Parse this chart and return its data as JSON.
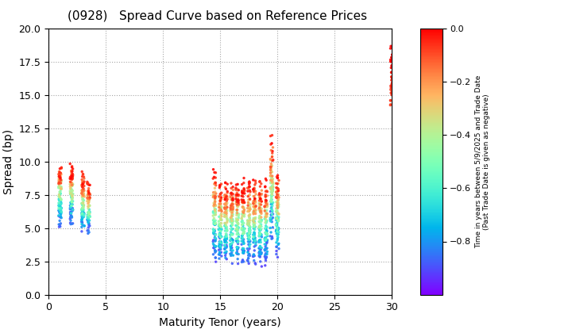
{
  "title": "(0928)   Spread Curve based on Reference Prices",
  "xlabel": "Maturity Tenor (years)",
  "ylabel": "Spread (bp)",
  "colorbar_label_line1": "Time in years between 5/9/2025 and Trade Date",
  "colorbar_label_line2": "(Past Trade Date is given as negative)",
  "xlim": [
    0,
    30
  ],
  "ylim": [
    0.0,
    20.0
  ],
  "xticks": [
    0,
    5,
    10,
    15,
    20,
    25,
    30
  ],
  "yticks": [
    0.0,
    2.5,
    5.0,
    7.5,
    10.0,
    12.5,
    15.0,
    17.5,
    20.0
  ],
  "colorbar_ticks": [
    0.0,
    -0.2,
    -0.4,
    -0.6,
    -0.8
  ],
  "cmap": "rainbow",
  "vmin": -1.0,
  "vmax": 0.0,
  "background": "#ffffff",
  "short_clusters": [
    [
      1.0,
      0.13,
      7.5,
      3.8,
      100
    ],
    [
      2.0,
      0.13,
      7.5,
      3.8,
      100
    ],
    [
      3.0,
      0.13,
      7.0,
      3.8,
      100
    ],
    [
      3.5,
      0.13,
      6.5,
      3.2,
      70
    ]
  ],
  "medium_clusters": [
    [
      14.5,
      0.13,
      6.0,
      5.5,
      100
    ],
    [
      15.0,
      0.13,
      5.5,
      5.0,
      100
    ],
    [
      15.5,
      0.13,
      5.5,
      5.0,
      100
    ],
    [
      16.0,
      0.13,
      5.5,
      5.0,
      100
    ],
    [
      16.5,
      0.13,
      5.5,
      5.0,
      100
    ],
    [
      17.0,
      0.13,
      5.5,
      5.0,
      100
    ],
    [
      17.5,
      0.13,
      5.5,
      5.0,
      100
    ],
    [
      18.0,
      0.13,
      5.5,
      5.0,
      100
    ],
    [
      18.5,
      0.13,
      5.5,
      5.0,
      100
    ],
    [
      19.0,
      0.13,
      5.5,
      5.0,
      100
    ],
    [
      19.5,
      0.13,
      8.0,
      6.5,
      100
    ],
    [
      20.0,
      0.13,
      6.0,
      5.0,
      100
    ]
  ],
  "long_clusters": [
    [
      30.0,
      0.13,
      16.5,
      3.5,
      45
    ]
  ]
}
